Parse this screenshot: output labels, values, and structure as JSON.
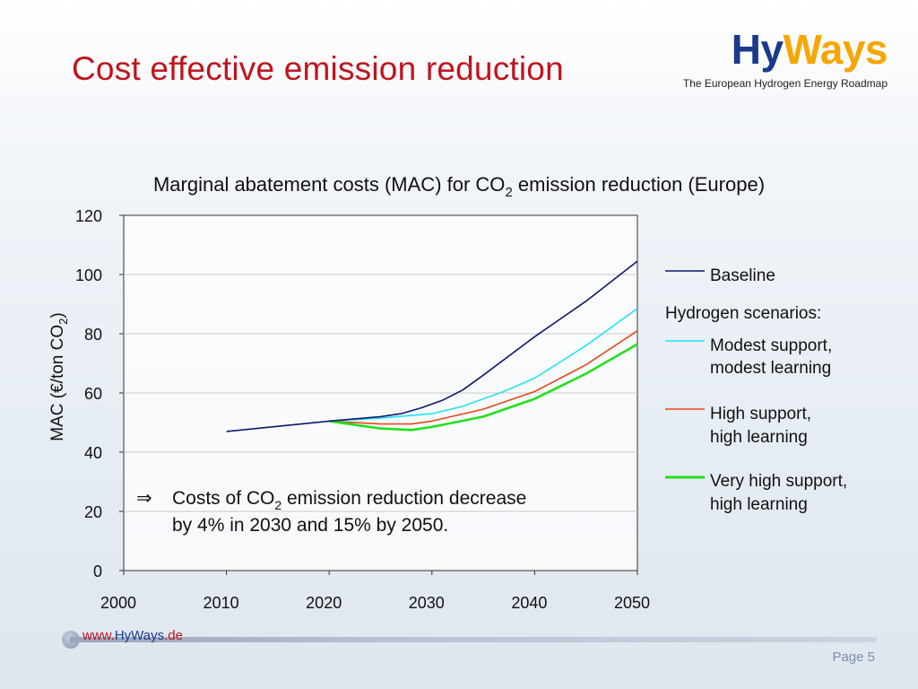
{
  "header": {
    "title": "Cost effective emission reduction",
    "logo": {
      "hy": "Hy",
      "ways": "Ways",
      "tagline": "The European Hydrogen Energy Roadmap"
    }
  },
  "footer": {
    "url_prefix": "www.",
    "url_main": "HyWays",
    "url_suffix": ".de",
    "page": "Page 5"
  },
  "colors": {
    "baseline": "#0d1a6e",
    "modest": "#22e3f0",
    "high": "#e8471b",
    "very_high": "#22e01c",
    "title": "#c0141d"
  },
  "chart_data": {
    "type": "line",
    "title_main": "Marginal abatement costs (MAC) for CO",
    "title_sub": "2",
    "title_rest": " emission reduction (Europe)",
    "ylabel_main": "MAC (€/ton CO",
    "ylabel_sub": "2",
    "ylabel_end": ")",
    "xlim": [
      2000,
      2050
    ],
    "ylim": [
      0,
      120
    ],
    "xticks": [
      "2000",
      "2010",
      "2020",
      "2030",
      "2040",
      "2050"
    ],
    "yticks": [
      "0",
      "20",
      "40",
      "60",
      "80",
      "100",
      "120"
    ],
    "grid": "horizontal",
    "legend_position": "right",
    "legend_heading": "Hydrogen scenarios:",
    "series": [
      {
        "key": "baseline",
        "name": "Baseline",
        "x": [
          2010,
          2020,
          2025,
          2027,
          2029,
          2031,
          2033,
          2035,
          2040,
          2045,
          2050
        ],
        "y": [
          47,
          50.5,
          52,
          53,
          55,
          57.5,
          61,
          66,
          79,
          91,
          104.5
        ]
      },
      {
        "key": "modest",
        "name": "Modest support, modest learning",
        "x": [
          2020,
          2025,
          2030,
          2033,
          2037,
          2040,
          2045,
          2050
        ],
        "y": [
          50.5,
          51.5,
          53,
          55.5,
          60.5,
          65,
          76,
          88.5
        ]
      },
      {
        "key": "high",
        "name": "High support, high learning",
        "x": [
          2020,
          2025,
          2028,
          2030,
          2035,
          2040,
          2045,
          2050
        ],
        "y": [
          50.5,
          49.5,
          49.5,
          50.5,
          54.5,
          60.5,
          69.5,
          81
        ]
      },
      {
        "key": "very_high",
        "name": "Very high support, high learning",
        "x": [
          2020,
          2025,
          2028,
          2030,
          2035,
          2040,
          2045,
          2050
        ],
        "y": [
          50.5,
          48,
          47.5,
          48.5,
          52,
          58,
          66.5,
          76.5
        ]
      }
    ],
    "annotation": {
      "arrow": "⇒",
      "line1_before": "Costs of CO",
      "line1_sub": "2",
      "line1_after": " emission reduction decrease",
      "line2": "by 4% in 2030 and 15% by 2050."
    }
  }
}
